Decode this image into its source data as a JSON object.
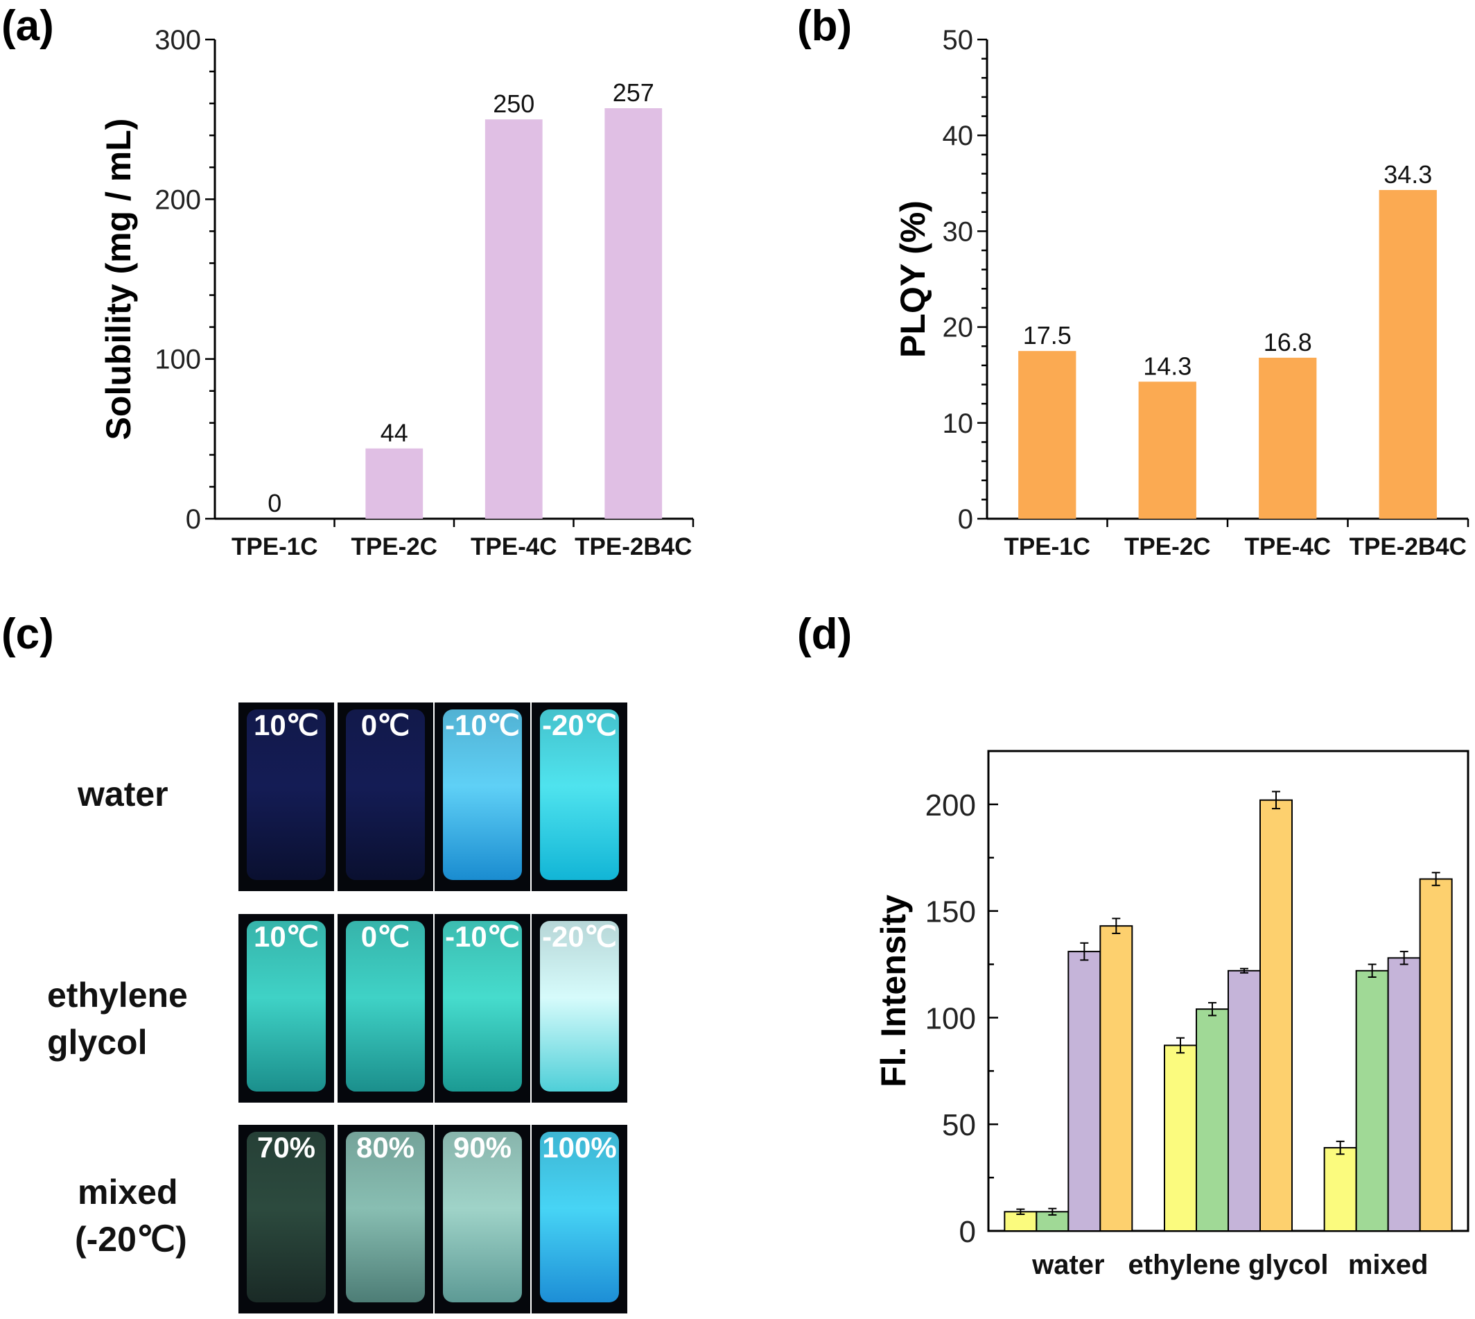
{
  "panels": {
    "a": "(a)",
    "b": "(b)",
    "c": "(c)",
    "d": "(d)"
  },
  "chart_data": [
    {
      "panel": "(a)",
      "type": "bar",
      "categories": [
        "TPE-1C",
        "TPE-2C",
        "TPE-4C",
        "TPE-2B4C"
      ],
      "values": [
        0,
        44,
        250,
        257
      ],
      "data_labels": [
        "0",
        "44",
        "250",
        "257"
      ],
      "ylabel": "Solubility (mg / mL)",
      "ylim": [
        0,
        300
      ],
      "yticks": [
        0,
        100,
        200,
        300
      ],
      "bar_color": "#e0bfe4"
    },
    {
      "panel": "(b)",
      "type": "bar",
      "categories": [
        "TPE-1C",
        "TPE-2C",
        "TPE-4C",
        "TPE-2B4C"
      ],
      "values": [
        17.5,
        14.3,
        16.8,
        34.3
      ],
      "data_labels": [
        "17.5",
        "14.3",
        "16.8",
        "34.3"
      ],
      "ylabel": "PLQY (%)",
      "ylim": [
        0,
        50
      ],
      "yticks": [
        0,
        10,
        20,
        30,
        40,
        50
      ],
      "bar_color": "#fbaa52"
    },
    {
      "panel": "(d)",
      "type": "bar",
      "categories": [
        "water",
        "ethylene glycol",
        "mixed"
      ],
      "series": [
        {
          "color": "#fbfb7e",
          "values": [
            9,
            87,
            39
          ],
          "errors": [
            1.2,
            3.5,
            3
          ]
        },
        {
          "color": "#a0d996",
          "values": [
            9,
            104,
            122
          ],
          "errors": [
            1.5,
            3,
            3
          ]
        },
        {
          "color": "#c5b4d9",
          "values": [
            131,
            122,
            128
          ],
          "errors": [
            4,
            1,
            3
          ]
        },
        {
          "color": "#fdd06e",
          "values": [
            143,
            202,
            165
          ],
          "errors": [
            3.5,
            4,
            3
          ]
        }
      ],
      "ylabel": "Fl. Intensity",
      "ylim": [
        0,
        225
      ],
      "yticks": [
        0,
        50,
        100,
        150,
        200
      ]
    }
  ],
  "photo_grid": {
    "rows": [
      {
        "label_lines": [
          "water"
        ],
        "cells": [
          {
            "label": "10℃",
            "glow": "#0a1030",
            "bright": "#141c55"
          },
          {
            "label": "0℃",
            "glow": "#0a1030",
            "bright": "#141c55"
          },
          {
            "label": "-10℃",
            "glow": "#1a8cd0",
            "bright": "#5fd0f6"
          },
          {
            "label": "-20℃",
            "glow": "#12b5d6",
            "bright": "#4fe3ee"
          }
        ]
      },
      {
        "label_lines": [
          "ethylene",
          "glycol"
        ],
        "cells": [
          {
            "label": "10℃",
            "glow": "#1b8f8c",
            "bright": "#3fd2c6"
          },
          {
            "label": "0℃",
            "glow": "#1b8f8c",
            "bright": "#3fd2c6"
          },
          {
            "label": "-10℃",
            "glow": "#1b9a93",
            "bright": "#46dccd"
          },
          {
            "label": "-20℃",
            "glow": "#4fcfd8",
            "bright": "#d6fbfb"
          }
        ]
      },
      {
        "label_lines": [
          "mixed",
          "(-20℃)"
        ],
        "cells": [
          {
            "label": "70%",
            "glow": "#1a2a26",
            "bright": "#2c4a3e"
          },
          {
            "label": "80%",
            "glow": "#4d7d76",
            "bright": "#88beb2"
          },
          {
            "label": "90%",
            "glow": "#5d9a95",
            "bright": "#9fd3c8"
          },
          {
            "label": "100%",
            "glow": "#1d8ed6",
            "bright": "#47d4f5"
          }
        ]
      }
    ]
  }
}
